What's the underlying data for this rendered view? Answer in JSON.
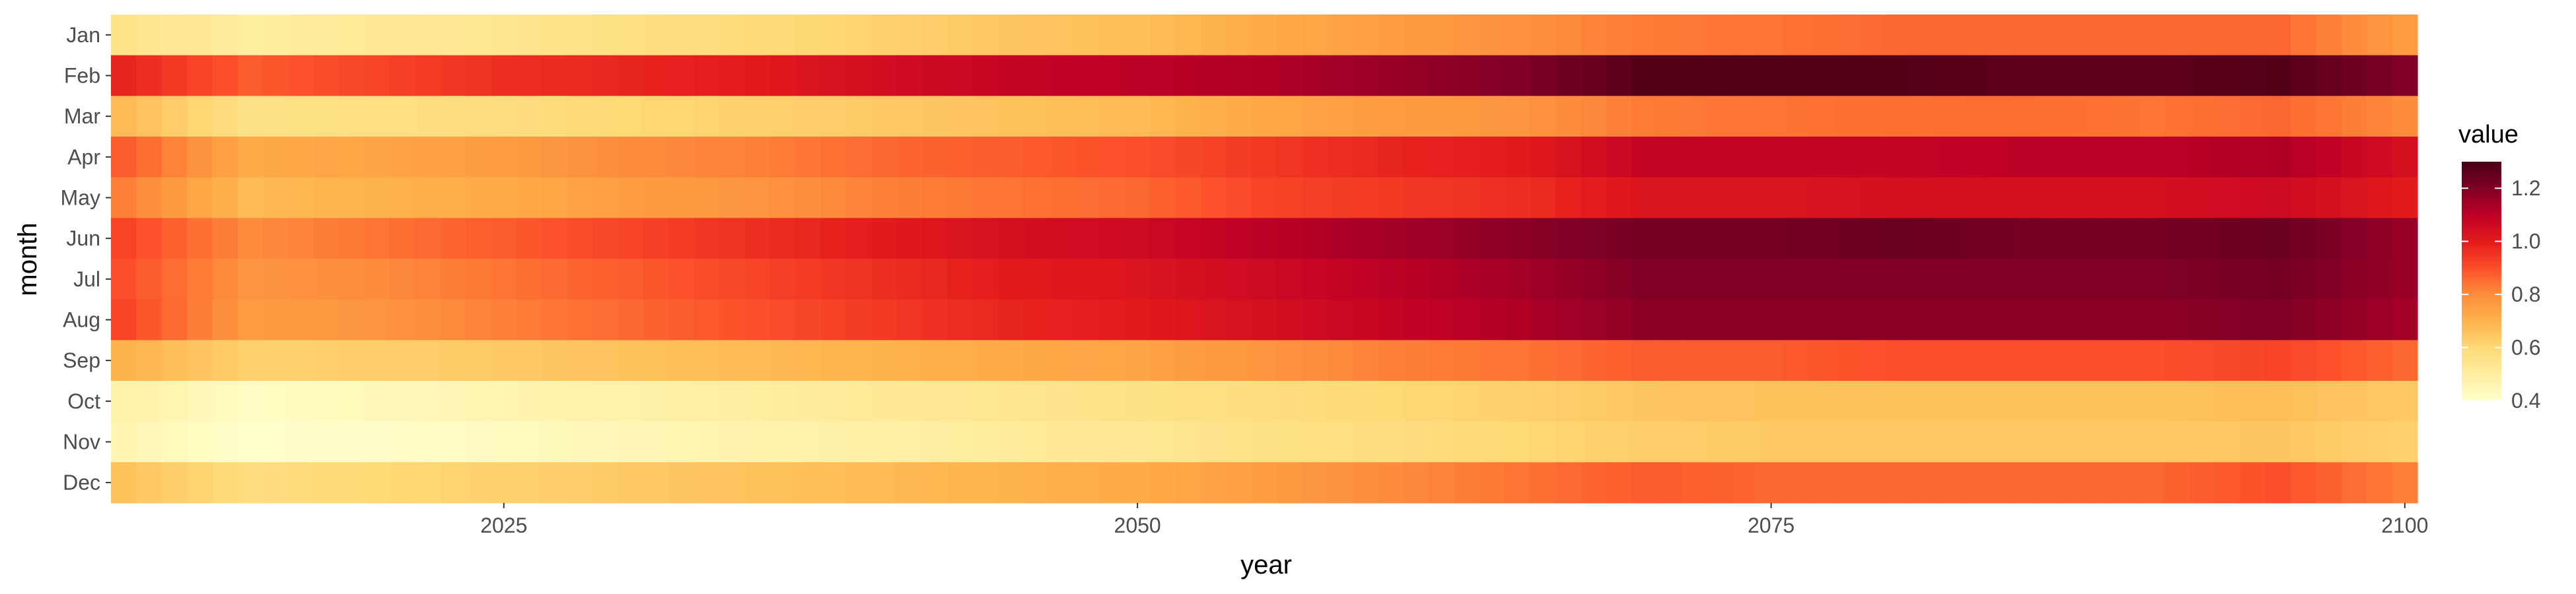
{
  "chart_data": {
    "type": "heatmap",
    "title": "",
    "xlabel": "year",
    "ylabel": "month",
    "x_range": [
      2010,
      2100
    ],
    "x_ticks": [
      2025,
      2050,
      2075,
      2100
    ],
    "months": [
      "Jan",
      "Feb",
      "Mar",
      "Apr",
      "May",
      "Jun",
      "Jul",
      "Aug",
      "Sep",
      "Oct",
      "Nov",
      "Dec"
    ],
    "legend": {
      "title": "value",
      "position": "right",
      "min": 0.4,
      "max": 1.3,
      "ticks": [
        "0.4",
        "0.6",
        "0.8",
        "1.0",
        "1.2"
      ],
      "colors": [
        "#FFFFCC",
        "#FFEDA0",
        "#FED976",
        "#FEB24C",
        "#FD8D3C",
        "#FC4E2A",
        "#E31A1C",
        "#BD0026",
        "#800026",
        "#4A0016"
      ]
    },
    "grid": true,
    "series": [
      {
        "name": "Jan",
        "values": [
          [
            2010,
            0.55
          ],
          [
            2015,
            0.5
          ],
          [
            2020,
            0.52
          ],
          [
            2025,
            0.54
          ],
          [
            2030,
            0.57
          ],
          [
            2035,
            0.59
          ],
          [
            2040,
            0.62
          ],
          [
            2045,
            0.65
          ],
          [
            2050,
            0.67
          ],
          [
            2055,
            0.72
          ],
          [
            2060,
            0.76
          ],
          [
            2065,
            0.79
          ],
          [
            2070,
            0.83
          ],
          [
            2075,
            0.84
          ],
          [
            2080,
            0.86
          ],
          [
            2085,
            0.86
          ],
          [
            2090,
            0.86
          ],
          [
            2095,
            0.86
          ],
          [
            2100,
            0.76
          ]
        ]
      },
      {
        "name": "Feb",
        "values": [
          [
            2010,
            0.98
          ],
          [
            2015,
            0.88
          ],
          [
            2020,
            0.92
          ],
          [
            2025,
            0.96
          ],
          [
            2030,
            0.98
          ],
          [
            2035,
            1.0
          ],
          [
            2040,
            1.05
          ],
          [
            2045,
            1.08
          ],
          [
            2050,
            1.1
          ],
          [
            2055,
            1.12
          ],
          [
            2060,
            1.16
          ],
          [
            2065,
            1.2
          ],
          [
            2070,
            1.28
          ],
          [
            2075,
            1.28
          ],
          [
            2080,
            1.28
          ],
          [
            2085,
            1.26
          ],
          [
            2090,
            1.26
          ],
          [
            2095,
            1.28
          ],
          [
            2100,
            1.2
          ]
        ]
      },
      {
        "name": "Mar",
        "values": [
          [
            2010,
            0.68
          ],
          [
            2015,
            0.56
          ],
          [
            2020,
            0.57
          ],
          [
            2025,
            0.58
          ],
          [
            2030,
            0.6
          ],
          [
            2035,
            0.62
          ],
          [
            2040,
            0.64
          ],
          [
            2045,
            0.66
          ],
          [
            2050,
            0.68
          ],
          [
            2055,
            0.73
          ],
          [
            2060,
            0.76
          ],
          [
            2065,
            0.78
          ],
          [
            2070,
            0.83
          ],
          [
            2075,
            0.84
          ],
          [
            2080,
            0.85
          ],
          [
            2085,
            0.85
          ],
          [
            2090,
            0.84
          ],
          [
            2095,
            0.86
          ],
          [
            2100,
            0.8
          ]
        ]
      },
      {
        "name": "Apr",
        "values": [
          [
            2010,
            0.88
          ],
          [
            2015,
            0.72
          ],
          [
            2020,
            0.74
          ],
          [
            2025,
            0.76
          ],
          [
            2030,
            0.8
          ],
          [
            2035,
            0.82
          ],
          [
            2040,
            0.86
          ],
          [
            2045,
            0.88
          ],
          [
            2050,
            0.9
          ],
          [
            2055,
            0.94
          ],
          [
            2060,
            0.98
          ],
          [
            2065,
            1.0
          ],
          [
            2070,
            1.08
          ],
          [
            2075,
            1.08
          ],
          [
            2080,
            1.08
          ],
          [
            2085,
            1.1
          ],
          [
            2090,
            1.1
          ],
          [
            2095,
            1.12
          ],
          [
            2100,
            1.04
          ]
        ]
      },
      {
        "name": "May",
        "values": [
          [
            2010,
            0.82
          ],
          [
            2015,
            0.68
          ],
          [
            2020,
            0.7
          ],
          [
            2025,
            0.72
          ],
          [
            2030,
            0.76
          ],
          [
            2035,
            0.78
          ],
          [
            2040,
            0.82
          ],
          [
            2045,
            0.84
          ],
          [
            2050,
            0.86
          ],
          [
            2055,
            0.92
          ],
          [
            2060,
            0.94
          ],
          [
            2065,
            0.96
          ],
          [
            2070,
            1.02
          ],
          [
            2075,
            1.02
          ],
          [
            2080,
            1.04
          ],
          [
            2085,
            1.04
          ],
          [
            2090,
            1.04
          ],
          [
            2095,
            1.06
          ],
          [
            2100,
            1.0
          ]
        ]
      },
      {
        "name": "Jun",
        "values": [
          [
            2010,
            0.92
          ],
          [
            2015,
            0.8
          ],
          [
            2020,
            0.84
          ],
          [
            2025,
            0.88
          ],
          [
            2030,
            0.92
          ],
          [
            2035,
            0.96
          ],
          [
            2040,
            1.0
          ],
          [
            2045,
            1.04
          ],
          [
            2050,
            1.06
          ],
          [
            2055,
            1.1
          ],
          [
            2060,
            1.14
          ],
          [
            2065,
            1.18
          ],
          [
            2070,
            1.22
          ],
          [
            2075,
            1.22
          ],
          [
            2080,
            1.24
          ],
          [
            2085,
            1.22
          ],
          [
            2090,
            1.22
          ],
          [
            2095,
            1.24
          ],
          [
            2100,
            1.16
          ]
        ]
      },
      {
        "name": "Jul",
        "values": [
          [
            2010,
            0.9
          ],
          [
            2015,
            0.78
          ],
          [
            2020,
            0.8
          ],
          [
            2025,
            0.84
          ],
          [
            2030,
            0.88
          ],
          [
            2035,
            0.92
          ],
          [
            2040,
            0.96
          ],
          [
            2045,
            1.0
          ],
          [
            2050,
            1.02
          ],
          [
            2055,
            1.06
          ],
          [
            2060,
            1.1
          ],
          [
            2065,
            1.14
          ],
          [
            2070,
            1.2
          ],
          [
            2075,
            1.2
          ],
          [
            2080,
            1.2
          ],
          [
            2085,
            1.2
          ],
          [
            2090,
            1.2
          ],
          [
            2095,
            1.22
          ],
          [
            2100,
            1.16
          ]
        ]
      },
      {
        "name": "Aug",
        "values": [
          [
            2010,
            0.92
          ],
          [
            2015,
            0.76
          ],
          [
            2020,
            0.78
          ],
          [
            2025,
            0.82
          ],
          [
            2030,
            0.86
          ],
          [
            2035,
            0.9
          ],
          [
            2040,
            0.94
          ],
          [
            2045,
            0.98
          ],
          [
            2050,
            1.0
          ],
          [
            2055,
            1.04
          ],
          [
            2060,
            1.08
          ],
          [
            2065,
            1.12
          ],
          [
            2070,
            1.18
          ],
          [
            2075,
            1.18
          ],
          [
            2080,
            1.18
          ],
          [
            2085,
            1.18
          ],
          [
            2090,
            1.18
          ],
          [
            2095,
            1.2
          ],
          [
            2100,
            1.14
          ]
        ]
      },
      {
        "name": "Sep",
        "values": [
          [
            2010,
            0.7
          ],
          [
            2015,
            0.62
          ],
          [
            2020,
            0.63
          ],
          [
            2025,
            0.64
          ],
          [
            2030,
            0.66
          ],
          [
            2035,
            0.68
          ],
          [
            2040,
            0.7
          ],
          [
            2045,
            0.72
          ],
          [
            2050,
            0.74
          ],
          [
            2055,
            0.78
          ],
          [
            2060,
            0.82
          ],
          [
            2065,
            0.84
          ],
          [
            2070,
            0.88
          ],
          [
            2075,
            0.88
          ],
          [
            2080,
            0.9
          ],
          [
            2085,
            0.9
          ],
          [
            2090,
            0.9
          ],
          [
            2095,
            0.92
          ],
          [
            2100,
            0.86
          ]
        ]
      },
      {
        "name": "Oct",
        "values": [
          [
            2010,
            0.48
          ],
          [
            2015,
            0.42
          ],
          [
            2020,
            0.44
          ],
          [
            2025,
            0.46
          ],
          [
            2030,
            0.48
          ],
          [
            2035,
            0.5
          ],
          [
            2040,
            0.52
          ],
          [
            2045,
            0.54
          ],
          [
            2050,
            0.56
          ],
          [
            2055,
            0.58
          ],
          [
            2060,
            0.6
          ],
          [
            2065,
            0.62
          ],
          [
            2070,
            0.65
          ],
          [
            2075,
            0.66
          ],
          [
            2080,
            0.66
          ],
          [
            2085,
            0.66
          ],
          [
            2090,
            0.66
          ],
          [
            2095,
            0.67
          ],
          [
            2100,
            0.64
          ]
        ]
      },
      {
        "name": "Nov",
        "values": [
          [
            2010,
            0.46
          ],
          [
            2015,
            0.4
          ],
          [
            2020,
            0.41
          ],
          [
            2025,
            0.43
          ],
          [
            2030,
            0.45
          ],
          [
            2035,
            0.47
          ],
          [
            2040,
            0.49
          ],
          [
            2045,
            0.51
          ],
          [
            2050,
            0.53
          ],
          [
            2055,
            0.56
          ],
          [
            2060,
            0.58
          ],
          [
            2065,
            0.6
          ],
          [
            2070,
            0.63
          ],
          [
            2075,
            0.64
          ],
          [
            2080,
            0.64
          ],
          [
            2085,
            0.64
          ],
          [
            2090,
            0.64
          ],
          [
            2095,
            0.65
          ],
          [
            2100,
            0.62
          ]
        ]
      },
      {
        "name": "Dec",
        "values": [
          [
            2010,
            0.66
          ],
          [
            2015,
            0.58
          ],
          [
            2020,
            0.6
          ],
          [
            2025,
            0.62
          ],
          [
            2030,
            0.64
          ],
          [
            2035,
            0.66
          ],
          [
            2040,
            0.68
          ],
          [
            2045,
            0.7
          ],
          [
            2050,
            0.72
          ],
          [
            2055,
            0.76
          ],
          [
            2060,
            0.8
          ],
          [
            2065,
            0.84
          ],
          [
            2070,
            0.88
          ],
          [
            2075,
            0.86
          ],
          [
            2080,
            0.86
          ],
          [
            2085,
            0.86
          ],
          [
            2090,
            0.86
          ],
          [
            2095,
            0.9
          ],
          [
            2100,
            0.82
          ]
        ]
      }
    ]
  }
}
